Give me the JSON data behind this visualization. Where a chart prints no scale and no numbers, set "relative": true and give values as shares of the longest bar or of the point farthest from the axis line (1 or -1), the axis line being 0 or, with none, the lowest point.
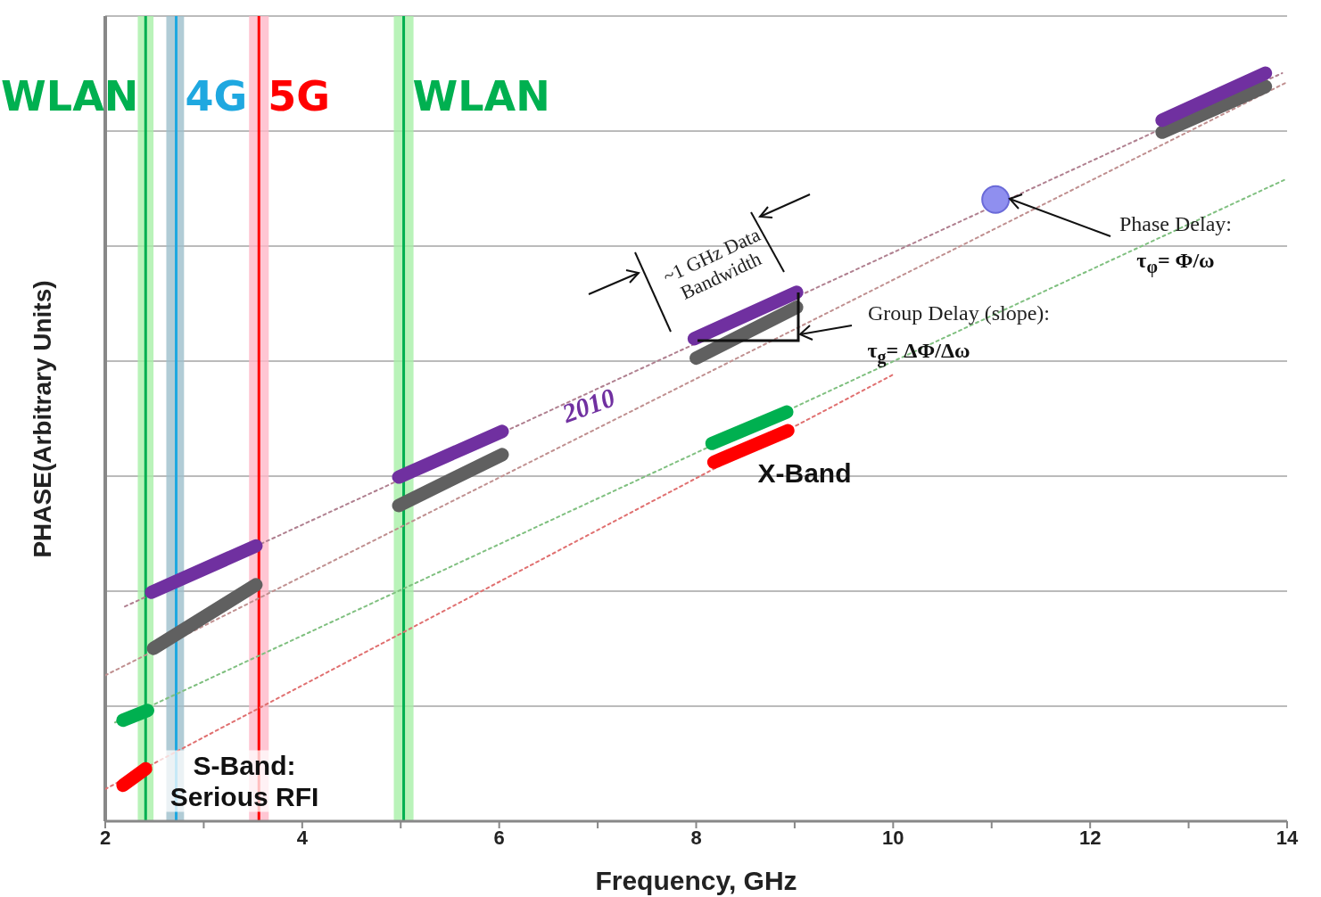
{
  "chart_data": {
    "type": "line",
    "relative": true,
    "xlabel": "Frequency, GHz",
    "ylabel": "PHASE(Arbitrary Units)",
    "xlim": [
      2,
      14
    ],
    "xticks": [
      2,
      {
        "value": 3,
        "label": null
      },
      4,
      {
        "value": 5,
        "label": null
      },
      6,
      {
        "value": 7,
        "label": null
      },
      8,
      {
        "value": 9,
        "label": null
      },
      10,
      {
        "value": 11,
        "label": null
      },
      12,
      {
        "value": 13,
        "label": null
      },
      14
    ],
    "grid": "y",
    "legend": false,
    "tick_labels": "x",
    "series": [
      {
        "color": "#b08090",
        "line_style": "dotted",
        "x": [
          2.2,
          13.95
        ],
        "values": [
          0.287,
          1.0
        ]
      },
      {
        "color": "#c09090",
        "line_style": "dotted",
        "x": [
          2,
          14
        ],
        "values": [
          0.195,
          0.988
        ]
      },
      {
        "color": "#80c080",
        "line_style": "dotted",
        "x": [
          2.1,
          14
        ],
        "values": [
          0.132,
          0.859
        ]
      },
      {
        "color": "#e07070",
        "line_style": "dotted",
        "x": [
          2,
          10
        ],
        "values": [
          0.043,
          0.597
        ]
      },
      {
        "color": "#606060",
        "line_style": "solid",
        "x": [
          2.49,
          3.53
        ],
        "values": [
          0.231,
          0.316
        ]
      },
      {
        "color": "#606060",
        "line_style": "solid",
        "x": [
          4.98,
          6.03
        ],
        "values": [
          0.422,
          0.49
        ]
      },
      {
        "color": "#606060",
        "line_style": "solid",
        "x": [
          8.0,
          9.02
        ],
        "values": [
          0.619,
          0.687
        ]
      },
      {
        "color": "#606060",
        "line_style": "solid",
        "x": [
          12.73,
          13.78
        ],
        "values": [
          0.921,
          0.982
        ]
      },
      {
        "color": "#7030a0",
        "line_style": "solid",
        "x": [
          2.47,
          3.53
        ],
        "values": [
          0.306,
          0.368
        ]
      },
      {
        "color": "#7030a0",
        "line_style": "solid",
        "x": [
          4.98,
          6.03
        ],
        "values": [
          0.46,
          0.521
        ]
      },
      {
        "color": "#7030a0",
        "line_style": "solid",
        "x": [
          7.98,
          9.02
        ],
        "values": [
          0.645,
          0.707
        ]
      },
      {
        "color": "#7030a0",
        "line_style": "solid",
        "x": [
          12.73,
          13.78
        ],
        "values": [
          0.937,
          1.0
        ]
      },
      {
        "color": "#00b050",
        "line_style": "solid",
        "x": [
          2.18,
          2.43
        ],
        "values": [
          0.135,
          0.148
        ]
      },
      {
        "color": "#00b050",
        "line_style": "solid",
        "x": [
          8.16,
          8.92
        ],
        "values": [
          0.505,
          0.547
        ]
      },
      {
        "color": "#ff0000",
        "line_style": "solid",
        "x": [
          2.18,
          2.41
        ],
        "values": [
          0.048,
          0.07
        ]
      },
      {
        "color": "#ff0000",
        "line_style": "solid",
        "x": [
          8.18,
          8.93
        ],
        "values": [
          0.48,
          0.522
        ]
      },
      {
        "type": "scatter",
        "marker": "circle",
        "color": "#8f8fef",
        "x": [
          11.04
        ],
        "values": [
          0.831
        ]
      }
    ],
    "bands": [
      {
        "axis": "x",
        "from": 2.33,
        "to": 2.49,
        "color": "#a8f0a8"
      },
      {
        "axis": "x",
        "from": 2.62,
        "to": 2.8,
        "color": "#9dbfcc"
      },
      {
        "axis": "x",
        "from": 3.46,
        "to": 3.66,
        "color": "#ffb8c8"
      },
      {
        "axis": "x",
        "from": 4.93,
        "to": 5.13,
        "color": "#a8f0a8"
      }
    ],
    "ref_lines": [
      {
        "axis": "x",
        "value": 2.41,
        "label": "WLAN",
        "color": "#00b050"
      },
      {
        "axis": "x",
        "value": 2.72,
        "label": "4G",
        "color": "#1fa8e0"
      },
      {
        "axis": "x",
        "value": 3.56,
        "label": "5G",
        "color": "#ff0000"
      },
      {
        "axis": "x",
        "value": 5.03,
        "label": "WLAN",
        "color": "#00b050"
      }
    ],
    "annotations": [
      "~1 GHz Data Bandwidth",
      "2010",
      "S-Band: Serious RFI",
      "X-Band",
      "Phase Delay:",
      "τ$_{φ}$= Φ/ω",
      "Group Delay (slope):",
      "τ$_{g}$= ΔΦ/Δω"
    ]
  }
}
